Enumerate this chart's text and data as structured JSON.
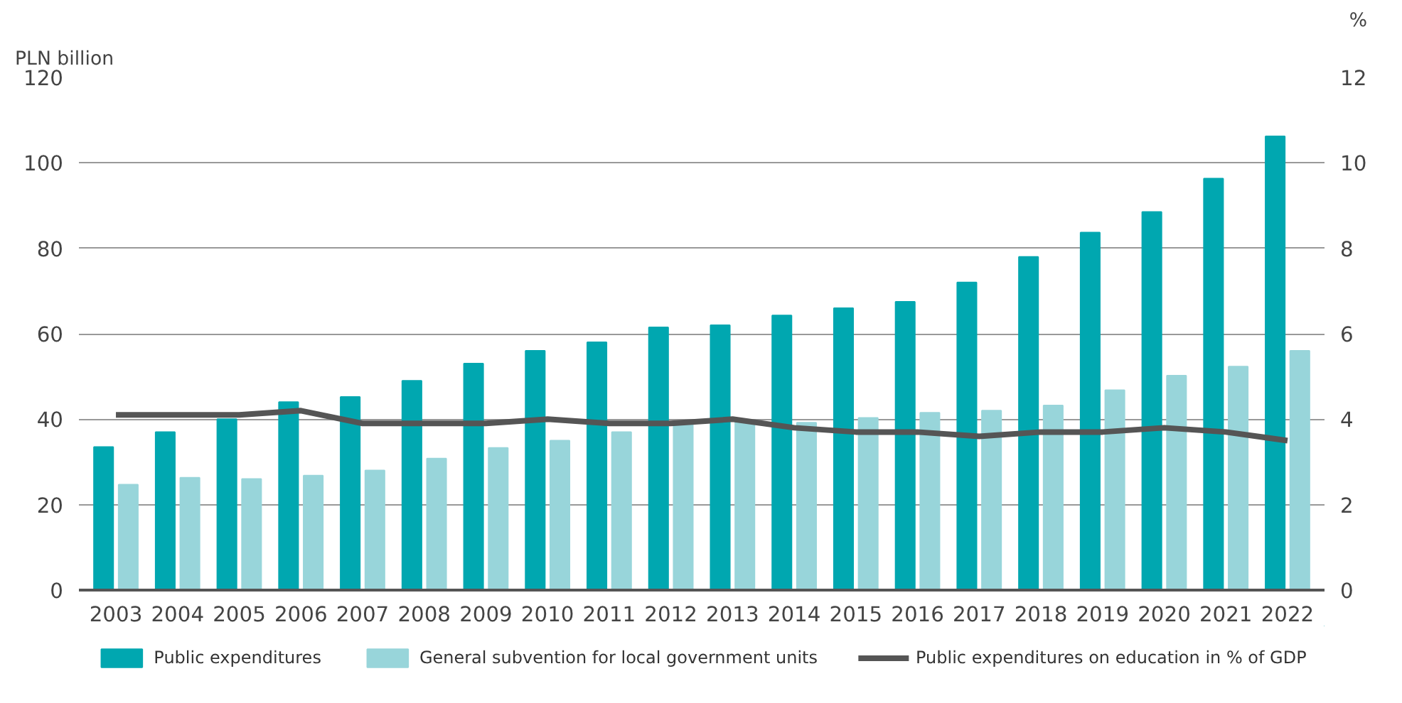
{
  "chart_data": {
    "type": "bar",
    "ylabel": "PLN billion",
    "y2label": "%",
    "categories": [
      "2003",
      "2004",
      "2005",
      "2006",
      "2007",
      "2008",
      "2009",
      "2010",
      "2011",
      "2012",
      "2013",
      "2014",
      "2015",
      "2016",
      "2017",
      "2018",
      "2019",
      "2020",
      "2021",
      "2022"
    ],
    "series": [
      {
        "name": "Public expenditures",
        "color": "#00a7b0",
        "values": [
          33.5,
          37,
          40,
          44,
          45.2,
          49,
          53,
          56,
          58,
          61.5,
          62,
          64.3,
          66,
          67.5,
          72,
          78,
          83.7,
          88.5,
          96.3,
          106.2
        ]
      },
      {
        "name": "General subvention for local government units",
        "color": "#98d5da",
        "values": [
          24.7,
          26.3,
          26,
          26.8,
          28,
          30.8,
          33.3,
          35,
          37,
          39,
          39.5,
          39.2,
          40.3,
          41.5,
          42,
          43.2,
          46.8,
          50.2,
          52.3,
          56
        ]
      },
      {
        "name": "Public expenditures on education in % of GDP",
        "type": "line",
        "axis": "y2",
        "color": "#555555",
        "values": [
          4.1,
          4.1,
          4.1,
          4.2,
          3.9,
          3.9,
          3.9,
          4.0,
          3.9,
          3.9,
          4.0,
          3.8,
          3.7,
          3.7,
          3.6,
          3.7,
          3.7,
          3.8,
          3.7,
          3.5
        ]
      }
    ],
    "ylim": [
      0,
      120
    ],
    "yticks": [
      0,
      20,
      40,
      60,
      80,
      100,
      120
    ],
    "y2lim": [
      0,
      12
    ],
    "y2ticks": [
      0,
      2,
      4,
      6,
      8,
      10,
      12
    ],
    "grid": "y",
    "legend": "bottom"
  }
}
